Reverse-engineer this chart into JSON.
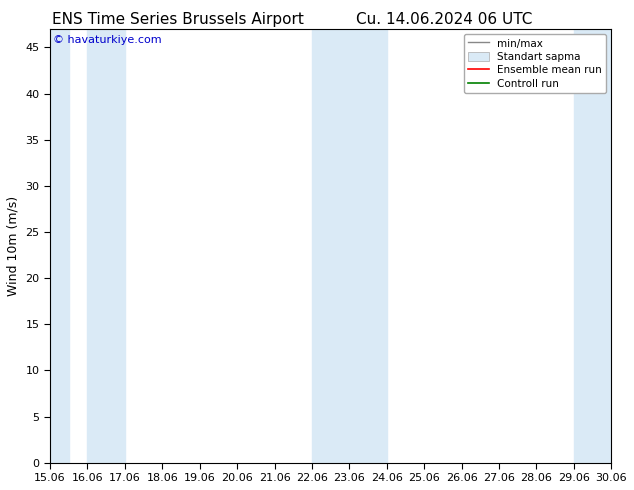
{
  "title_left": "ENS Time Series Brussels Airport",
  "title_right": "Cu. 14.06.2024 06 UTC",
  "ylabel": "Wind 10m (m/s)",
  "watermark": "© havaturkiye.com",
  "xmin": 15.06,
  "xmax": 30.06,
  "ymin": 0,
  "ymax": 47,
  "yticks": [
    0,
    5,
    10,
    15,
    20,
    25,
    30,
    35,
    40,
    45
  ],
  "xtick_labels": [
    "15.06",
    "16.06",
    "17.06",
    "18.06",
    "19.06",
    "20.06",
    "21.06",
    "22.06",
    "23.06",
    "24.06",
    "25.06",
    "26.06",
    "27.06",
    "28.06",
    "29.06",
    "30.06"
  ],
  "xtick_positions": [
    15.06,
    16.06,
    17.06,
    18.06,
    19.06,
    20.06,
    21.06,
    22.06,
    23.06,
    24.06,
    25.06,
    26.06,
    27.06,
    28.06,
    29.06,
    30.06
  ],
  "shaded_regions": [
    [
      15.06,
      15.56
    ],
    [
      16.06,
      17.06
    ],
    [
      22.06,
      24.06
    ],
    [
      29.06,
      30.06
    ]
  ],
  "shaded_color": "#daeaf6",
  "background_color": "#ffffff",
  "legend_items": [
    {
      "label": "min/max",
      "color": "#aaaaaa",
      "type": "errorbar"
    },
    {
      "label": "Standart sapma",
      "color": "#c8d8e8",
      "type": "fill"
    },
    {
      "label": "Ensemble mean run",
      "color": "#ff0000",
      "type": "line"
    },
    {
      "label": "Controll run",
      "color": "#008000",
      "type": "line"
    }
  ],
  "watermark_color": "#0000cc",
  "title_fontsize": 11,
  "tick_fontsize": 8,
  "ylabel_fontsize": 9,
  "legend_fontsize": 7.5
}
